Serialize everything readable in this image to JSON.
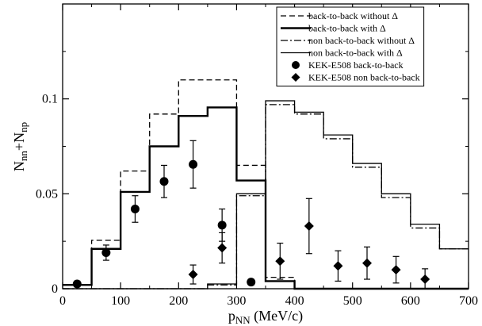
{
  "chart_data": {
    "type": "line",
    "xlabel": {
      "main": "p",
      "sub": "NN",
      "unit": " (MeV/c)"
    },
    "ylabel": {
      "main1": "N",
      "sub1": "nn",
      "plus": "+N",
      "sub2": "np"
    },
    "xlim": [
      0,
      700
    ],
    "ylim": [
      0,
      0.15
    ],
    "xticks": [
      0,
      100,
      200,
      300,
      400,
      500,
      600,
      700
    ],
    "yticks": [
      0,
      0.05,
      0.1
    ],
    "ytick_labels": [
      "0",
      "0.05",
      "0.1"
    ],
    "grid": false,
    "legend_position": "top-right",
    "bin_edges": [
      0,
      50,
      100,
      150,
      200,
      250,
      300,
      350,
      400,
      450,
      500,
      550,
      600,
      650,
      700
    ],
    "series": [
      {
        "name": "back-to-back without Δ",
        "style": "dashed",
        "values": [
          0.002,
          0.0255,
          0.062,
          0.092,
          0.11,
          0.11,
          0.065,
          0.006,
          0,
          0,
          0,
          0,
          0,
          0
        ]
      },
      {
        "name": "back-to-back with Δ",
        "style": "solid-thick",
        "values": [
          0.002,
          0.021,
          0.051,
          0.075,
          0.091,
          0.0955,
          0.057,
          0.004,
          0,
          0,
          0,
          0,
          0,
          0
        ]
      },
      {
        "name": "non back-to-back without Δ",
        "style": "dashdot",
        "values": [
          0,
          0,
          0,
          0,
          0,
          0.002,
          0.049,
          0.097,
          0.092,
          0.079,
          0.064,
          0.048,
          0.032,
          0.021
        ]
      },
      {
        "name": "non back-to-back with Δ",
        "style": "solid-thin",
        "values": [
          0,
          0,
          0,
          0,
          0,
          0.0025,
          0.05,
          0.099,
          0.093,
          0.081,
          0.066,
          0.05,
          0.034,
          0.021
        ]
      }
    ],
    "points": [
      {
        "name": "KEK-E508 back-to-back",
        "marker": "circle",
        "data": [
          {
            "x": 25,
            "y": 0.0025,
            "err": 0.0015
          },
          {
            "x": 75,
            "y": 0.019,
            "err": 0.004
          },
          {
            "x": 125,
            "y": 0.042,
            "err": 0.007
          },
          {
            "x": 175,
            "y": 0.0565,
            "err": 0.0085
          },
          {
            "x": 225,
            "y": 0.0655,
            "err": 0.0125
          },
          {
            "x": 275,
            "y": 0.0335,
            "err": 0.0085
          },
          {
            "x": 325,
            "y": 0.0035,
            "err": 0.0015
          }
        ]
      },
      {
        "name": "KEK-E508 non back-to-back",
        "marker": "diamond",
        "data": [
          {
            "x": 225,
            "y": 0.0075,
            "err": 0.005
          },
          {
            "x": 275,
            "y": 0.0215,
            "err": 0.008
          },
          {
            "x": 375,
            "y": 0.0145,
            "err": 0.0095
          },
          {
            "x": 425,
            "y": 0.033,
            "err": 0.0145
          },
          {
            "x": 475,
            "y": 0.012,
            "err": 0.008
          },
          {
            "x": 525,
            "y": 0.0135,
            "err": 0.0085
          },
          {
            "x": 575,
            "y": 0.01,
            "err": 0.007
          },
          {
            "x": 625,
            "y": 0.005,
            "err": 0.0055
          }
        ]
      }
    ]
  }
}
